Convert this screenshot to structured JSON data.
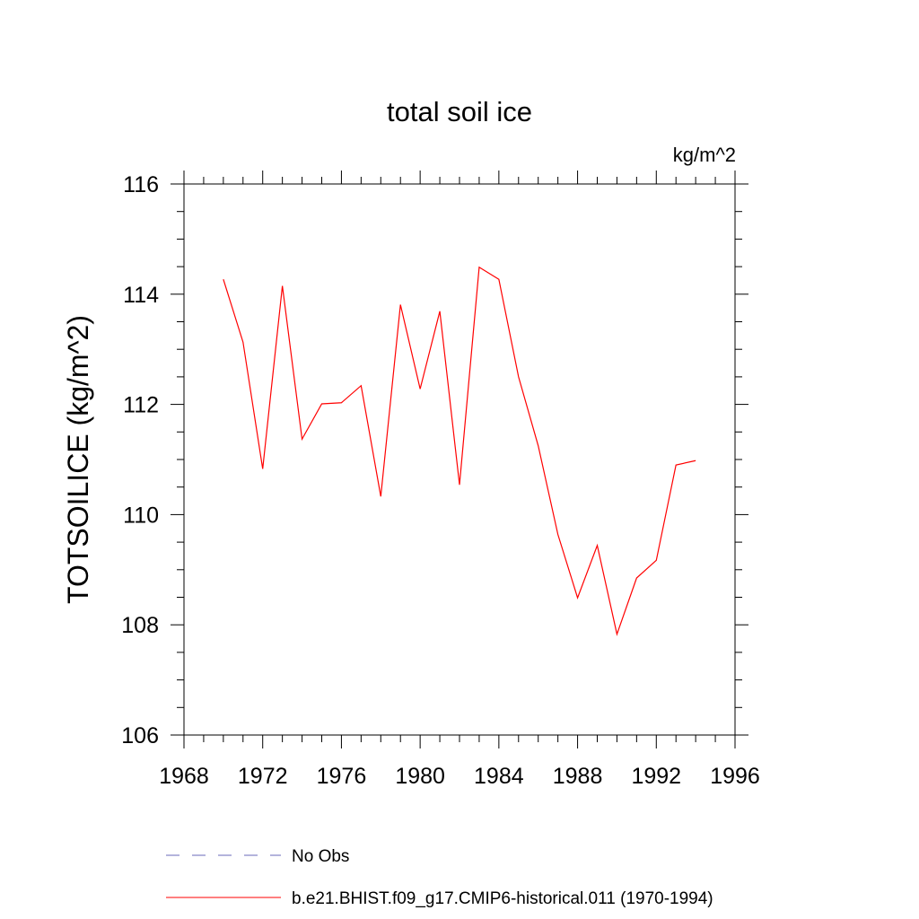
{
  "chart_data": {
    "type": "line",
    "title": "total soil ice",
    "units": "kg/m^2",
    "xlabel": "",
    "ylabel": "TOTSOILICE  (kg/m^2)",
    "xlim": [
      1968,
      1996
    ],
    "ylim": [
      106,
      116
    ],
    "xticks": [
      1968,
      1972,
      1976,
      1980,
      1984,
      1988,
      1992,
      1996
    ],
    "yticks": [
      106,
      108,
      110,
      112,
      114,
      116
    ],
    "grid": false,
    "legend_position": "bottom",
    "series": [
      {
        "name": "b.e21.BHIST.f09_g17.CMIP6-historical.011 (1970-1994)",
        "color": "#ff0000",
        "style": "solid",
        "x": [
          1970,
          1971,
          1972,
          1973,
          1974,
          1975,
          1976,
          1977,
          1978,
          1979,
          1980,
          1981,
          1982,
          1983,
          1984,
          1985,
          1986,
          1987,
          1988,
          1989,
          1990,
          1991,
          1992,
          1993,
          1994
        ],
        "y": [
          114.27,
          113.13,
          110.83,
          114.15,
          111.37,
          112.01,
          112.03,
          112.34,
          110.33,
          113.81,
          112.28,
          113.69,
          110.54,
          114.49,
          114.27,
          112.5,
          111.25,
          109.64,
          108.49,
          109.44,
          107.83,
          108.85,
          109.17,
          110.9,
          110.98
        ]
      }
    ],
    "legend": [
      {
        "label": "No Obs",
        "color": "#6a6ab8",
        "style": "dashed"
      },
      {
        "label": "b.e21.BHIST.f09_g17.CMIP6-historical.011 (1970-1994)",
        "color": "#ff0000",
        "style": "solid"
      }
    ]
  }
}
